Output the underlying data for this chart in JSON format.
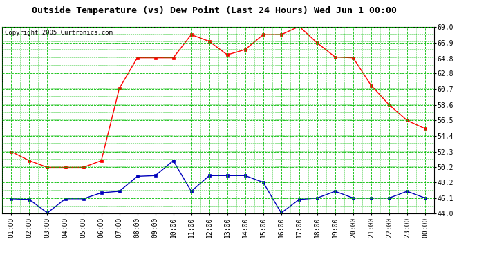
{
  "title": "Outside Temperature (vs) Dew Point (Last 24 Hours) Wed Jun 1 00:00",
  "copyright": "Copyright 2005 Curtronics.com",
  "x_labels": [
    "01:00",
    "02:00",
    "03:00",
    "04:00",
    "05:00",
    "06:00",
    "07:00",
    "08:00",
    "09:00",
    "10:00",
    "11:00",
    "12:00",
    "13:00",
    "14:00",
    "15:00",
    "16:00",
    "17:00",
    "18:00",
    "19:00",
    "20:00",
    "21:00",
    "22:00",
    "23:00",
    "00:00"
  ],
  "temp_data": [
    52.3,
    51.1,
    50.2,
    50.2,
    50.2,
    51.1,
    60.8,
    64.9,
    64.9,
    64.9,
    68.0,
    67.1,
    65.3,
    66.0,
    68.0,
    68.0,
    69.1,
    66.9,
    65.0,
    64.9,
    61.2,
    58.6,
    56.5,
    55.4
  ],
  "dew_data": [
    46.0,
    45.9,
    44.1,
    46.0,
    46.0,
    46.8,
    47.0,
    49.0,
    49.1,
    51.1,
    47.0,
    49.1,
    49.1,
    49.1,
    48.2,
    44.1,
    45.9,
    46.1,
    47.0,
    46.1,
    46.1,
    46.1,
    47.0,
    46.1
  ],
  "ylim_min": 44.0,
  "ylim_max": 69.0,
  "ytick_values": [
    44.0,
    46.1,
    48.2,
    50.2,
    52.3,
    54.4,
    56.5,
    58.6,
    60.7,
    62.8,
    64.8,
    66.9,
    69.0
  ],
  "ytick_labels": [
    "44.0",
    "46.1",
    "48.2",
    "50.2",
    "52.3",
    "54.4",
    "56.5",
    "58.6",
    "60.7",
    "62.8",
    "64.8",
    "66.9",
    "69.0"
  ],
  "temp_color": "#FF0000",
  "dew_color": "#0000BB",
  "grid_color": "#00BB00",
  "bg_color": "#FFFFFF",
  "title_fontsize": 9.5,
  "tick_fontsize": 7,
  "copyright_fontsize": 6.5
}
